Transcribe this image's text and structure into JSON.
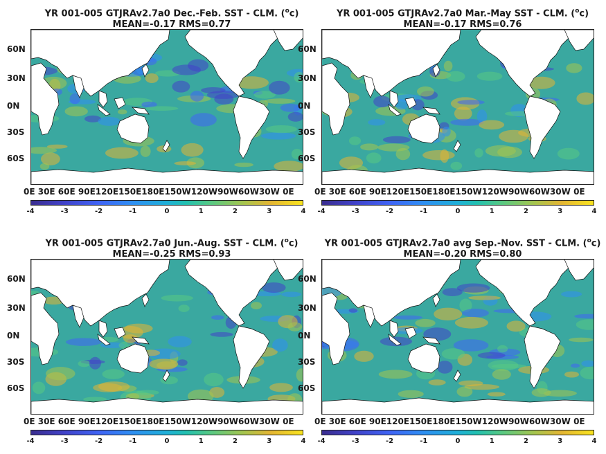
{
  "panels": [
    {
      "title_prefix": "YR 001-005 GTJRAv2.7a0  Dec.-Feb. SST - CLM. (",
      "unit_sup": "o",
      "unit_suffix": "c)",
      "stats": "MEAN=-0.17   RMS=0.77"
    },
    {
      "title_prefix": "YR 001-005 GTJRAv2.7a0 Mar.-May SST - CLM. (",
      "unit_sup": "o",
      "unit_suffix": "c)",
      "stats": "MEAN=-0.17   RMS=0.76"
    },
    {
      "title_prefix": "YR 001-005 GTJRAv2.7a0 Jun.-Aug. SST - CLM. (",
      "unit_sup": "o",
      "unit_suffix": "c)",
      "stats": "MEAN=-0.25   RMS=0.93"
    },
    {
      "title_prefix": "YR 001-005 GTJRAv2.7a0 avg Sep.-Nov. SST - CLM. (",
      "unit_sup": "o",
      "unit_suffix": "c)",
      "stats": "MEAN=-0.20   RMS=0.80"
    }
  ],
  "lat_labels": [
    "60N",
    "30N",
    "0N",
    "30S",
    "60S"
  ],
  "lon_labels": "0E  30E 60E 90E120E150E180E150W120W90W60W30W  0E",
  "colorbar_ticks": [
    "-4",
    "-3",
    "-2",
    "-1",
    "0",
    "1",
    "2",
    "3",
    "4"
  ],
  "colors": {
    "ocean": "#3aa8a0",
    "land": "#ffffff",
    "cold": "#3f64f5",
    "warm": "#e3b533"
  }
}
